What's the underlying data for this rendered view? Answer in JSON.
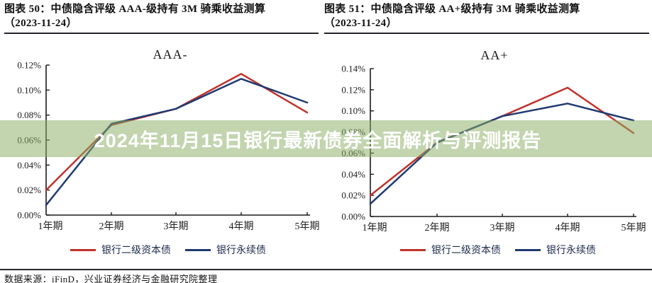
{
  "header": {
    "left": {
      "line1": "图表 50：中债隐含评级 AAA-级持有 3M 骑乘收益测算",
      "line2": "（2023-11-24）"
    },
    "right": {
      "line1": "图表 51：中债隐含评级 AA+级持有 3M 骑乘收益测算",
      "line2": "（2023-11-24）"
    }
  },
  "banner": {
    "text": "2024年11月15日银行最新债券全面解析与评测报告",
    "bg": "rgba(139,175,102,0.52)",
    "text_color": "#ffffff"
  },
  "footer": {
    "text": "数据来源：iFinD，兴业证券经济与金融研究院整理"
  },
  "colors": {
    "tier2_red": "#c0322b",
    "perpetual_blue": "#1f3a72",
    "axis": "#1a1a1a"
  },
  "chart_data": [
    {
      "type": "line",
      "title": "AAA-",
      "categories": [
        "1年期",
        "2年期",
        "3年期",
        "4年期",
        "5年期"
      ],
      "series": [
        {
          "name": "银行二级资本债",
          "color": "#c0322b",
          "values": [
            0.02,
            0.072,
            0.085,
            0.113,
            0.082
          ]
        },
        {
          "name": "银行永续债",
          "color": "#1f3a72",
          "values": [
            0.008,
            0.073,
            0.085,
            0.109,
            0.09
          ]
        }
      ],
      "xlabel": "",
      "ylabel": "",
      "ylim": [
        0,
        0.12
      ],
      "ytick_step": 0.02,
      "ytick_format": "percent_2dp",
      "grid": false,
      "legend_position": "bottom"
    },
    {
      "type": "line",
      "title": "AA+",
      "categories": [
        "1年期",
        "2年期",
        "3年期",
        "4年期",
        "5年期"
      ],
      "series": [
        {
          "name": "银行二级资本债",
          "color": "#c0322b",
          "values": [
            0.02,
            0.07,
            0.095,
            0.122,
            0.079
          ]
        },
        {
          "name": "银行永续债",
          "color": "#1f3a72",
          "values": [
            0.012,
            0.07,
            0.095,
            0.107,
            0.091
          ]
        }
      ],
      "xlabel": "",
      "ylabel": "",
      "ylim": [
        0,
        0.14
      ],
      "ytick_step": 0.02,
      "ytick_format": "percent_2dp",
      "grid": false,
      "legend_position": "bottom"
    }
  ]
}
